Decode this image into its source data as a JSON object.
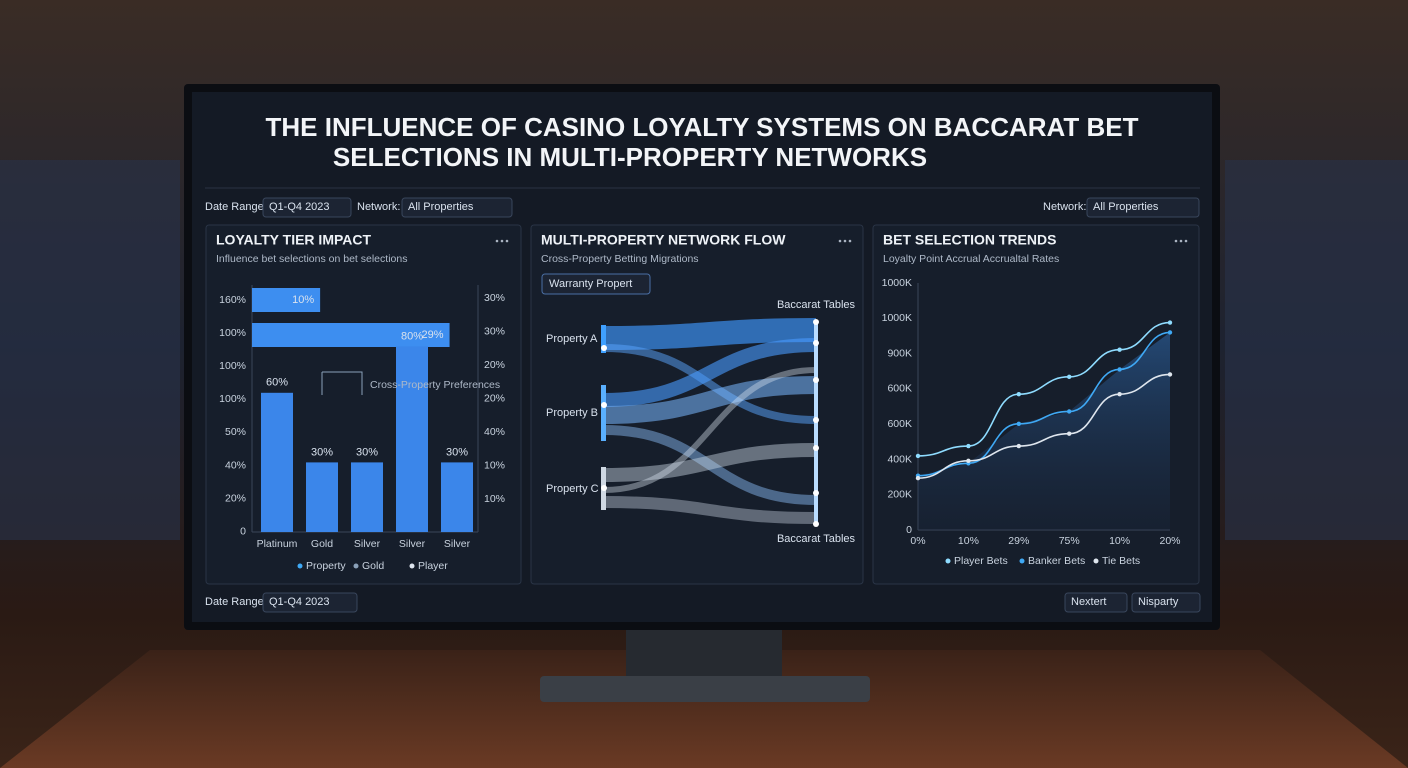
{
  "title_lines": [
    "THE INFLUENCE OF CASINO LOYALTY SYSTEMS ON BACCARAT BET",
    "SELECTIONS IN MULTI-PROPERTY NETWORKS"
  ],
  "filters": {
    "date_label": "Date Range:",
    "date_value": "Q1-Q4 2023",
    "network_label": "Network:",
    "network_value": "All Properties",
    "right_network_label": "Network:",
    "right_network_value": "All Properties"
  },
  "panel1": {
    "title": "LOYALTY TIER IMPACT",
    "subtitle": "Influence bet selections on bet selections",
    "left_axis_labels": [
      "160%",
      "100%",
      "100%",
      "100%",
      "50%",
      "40%",
      "20%",
      "0"
    ],
    "right_axis_labels": [
      "30%",
      "30%",
      "20%",
      "20%",
      "40%",
      "10%",
      "10%"
    ],
    "hbars": {
      "values": [
        10,
        29
      ],
      "value_labels": [
        "10%",
        "29%"
      ],
      "xlim": [
        0,
        32
      ],
      "color": "#3d8ef0"
    },
    "bars": {
      "categories": [
        "Platinum",
        "Gold",
        "Silver",
        "Silver",
        "Silver"
      ],
      "values": [
        60,
        30,
        30,
        80,
        30
      ],
      "value_labels": [
        "60%",
        "30%",
        "30%",
        "80%",
        "30%"
      ],
      "ylim": [
        0,
        100
      ],
      "color": "#3b86ea"
    },
    "annotation": "Cross-Property Preferences",
    "legend": [
      {
        "name": "Property",
        "color": "#3fa9f5"
      },
      {
        "name": "Gold",
        "color": "#8aa0b8"
      },
      {
        "name": "Player",
        "color": "#dde4ee"
      }
    ]
  },
  "panel2": {
    "title": "MULTI-PROPERTY NETWORK FLOW",
    "subtitle": "Cross-Property Betting Migrations",
    "dropdown": "Warranty Propert",
    "target_top": "Baccarat Tables",
    "target_bottom": "Baccarat Tables",
    "sources": [
      "Property A",
      "Property B",
      "Property C"
    ]
  },
  "panel3": {
    "title": "BET SELECTION TRENDS",
    "subtitle": "Loyalty Point Accrual Accrualtal Rates",
    "y_axis_labels": [
      "1000K",
      "1000K",
      "900K",
      "600K",
      "600K",
      "400K",
      "200K",
      "0"
    ],
    "categories": [
      "0%",
      "10%",
      "29%",
      "75%",
      "10%",
      "20%"
    ],
    "ylim": [
      0,
      1000
    ],
    "series": [
      {
        "name": "Player Bets",
        "color": "#8fdcff",
        "values": [
          300,
          340,
          550,
          620,
          730,
          840
        ]
      },
      {
        "name": "Banker Bets",
        "color": "#3fa9f5",
        "values": [
          220,
          270,
          430,
          480,
          650,
          800
        ]
      },
      {
        "name": "Tie Bets",
        "color": "#dfe6ee",
        "values": [
          210,
          280,
          340,
          390,
          550,
          630
        ]
      }
    ]
  },
  "footer": {
    "date_label": "Date Range:",
    "date_value": "Q1-Q4 2023",
    "button_1": "Nextert",
    "button_2": "Nisparty"
  }
}
